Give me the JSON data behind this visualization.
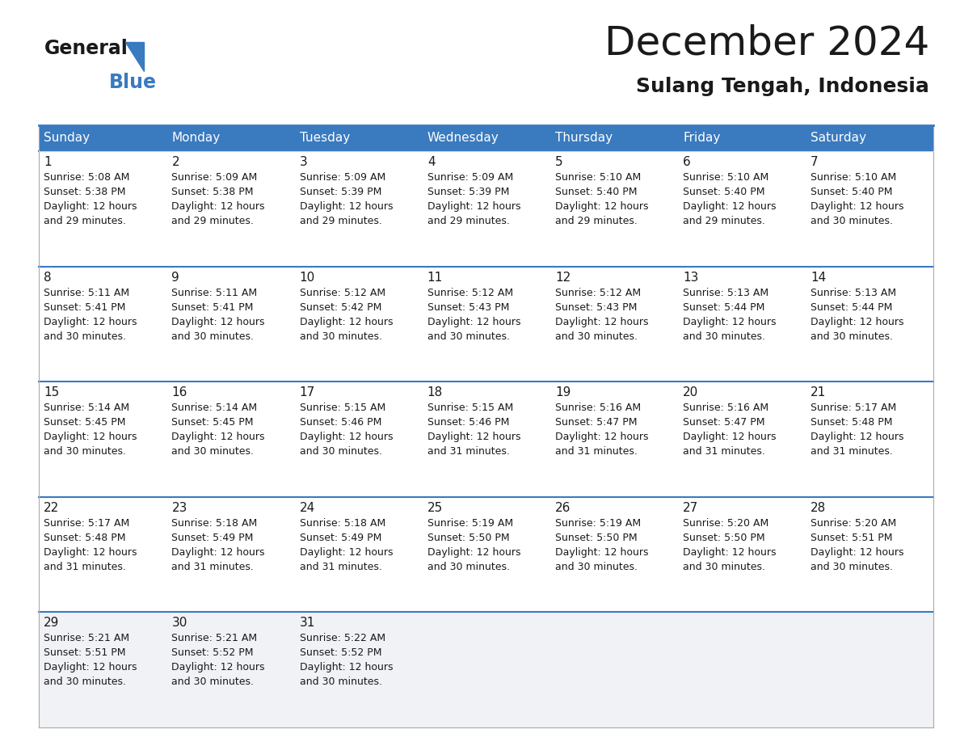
{
  "title": "December 2024",
  "subtitle": "Sulang Tengah, Indonesia",
  "header_color": "#3a7abf",
  "header_text_color": "#ffffff",
  "cell_bg": "#ffffff",
  "cell_bg_last": "#f0f2f5",
  "separator_color": "#3a7abf",
  "border_color": "#3a7abf",
  "days_of_week": [
    "Sunday",
    "Monday",
    "Tuesday",
    "Wednesday",
    "Thursday",
    "Friday",
    "Saturday"
  ],
  "calendar_data": [
    [
      {
        "day": 1,
        "sunrise": "5:08 AM",
        "sunset": "5:38 PM",
        "daylight": "12 hours and 29 minutes"
      },
      {
        "day": 2,
        "sunrise": "5:09 AM",
        "sunset": "5:38 PM",
        "daylight": "12 hours and 29 minutes"
      },
      {
        "day": 3,
        "sunrise": "5:09 AM",
        "sunset": "5:39 PM",
        "daylight": "12 hours and 29 minutes"
      },
      {
        "day": 4,
        "sunrise": "5:09 AM",
        "sunset": "5:39 PM",
        "daylight": "12 hours and 29 minutes"
      },
      {
        "day": 5,
        "sunrise": "5:10 AM",
        "sunset": "5:40 PM",
        "daylight": "12 hours and 29 minutes"
      },
      {
        "day": 6,
        "sunrise": "5:10 AM",
        "sunset": "5:40 PM",
        "daylight": "12 hours and 29 minutes"
      },
      {
        "day": 7,
        "sunrise": "5:10 AM",
        "sunset": "5:40 PM",
        "daylight": "12 hours and 30 minutes"
      }
    ],
    [
      {
        "day": 8,
        "sunrise": "5:11 AM",
        "sunset": "5:41 PM",
        "daylight": "12 hours and 30 minutes"
      },
      {
        "day": 9,
        "sunrise": "5:11 AM",
        "sunset": "5:41 PM",
        "daylight": "12 hours and 30 minutes"
      },
      {
        "day": 10,
        "sunrise": "5:12 AM",
        "sunset": "5:42 PM",
        "daylight": "12 hours and 30 minutes"
      },
      {
        "day": 11,
        "sunrise": "5:12 AM",
        "sunset": "5:43 PM",
        "daylight": "12 hours and 30 minutes"
      },
      {
        "day": 12,
        "sunrise": "5:12 AM",
        "sunset": "5:43 PM",
        "daylight": "12 hours and 30 minutes"
      },
      {
        "day": 13,
        "sunrise": "5:13 AM",
        "sunset": "5:44 PM",
        "daylight": "12 hours and 30 minutes"
      },
      {
        "day": 14,
        "sunrise": "5:13 AM",
        "sunset": "5:44 PM",
        "daylight": "12 hours and 30 minutes"
      }
    ],
    [
      {
        "day": 15,
        "sunrise": "5:14 AM",
        "sunset": "5:45 PM",
        "daylight": "12 hours and 30 minutes"
      },
      {
        "day": 16,
        "sunrise": "5:14 AM",
        "sunset": "5:45 PM",
        "daylight": "12 hours and 30 minutes"
      },
      {
        "day": 17,
        "sunrise": "5:15 AM",
        "sunset": "5:46 PM",
        "daylight": "12 hours and 30 minutes"
      },
      {
        "day": 18,
        "sunrise": "5:15 AM",
        "sunset": "5:46 PM",
        "daylight": "12 hours and 31 minutes"
      },
      {
        "day": 19,
        "sunrise": "5:16 AM",
        "sunset": "5:47 PM",
        "daylight": "12 hours and 31 minutes"
      },
      {
        "day": 20,
        "sunrise": "5:16 AM",
        "sunset": "5:47 PM",
        "daylight": "12 hours and 31 minutes"
      },
      {
        "day": 21,
        "sunrise": "5:17 AM",
        "sunset": "5:48 PM",
        "daylight": "12 hours and 31 minutes"
      }
    ],
    [
      {
        "day": 22,
        "sunrise": "5:17 AM",
        "sunset": "5:48 PM",
        "daylight": "12 hours and 31 minutes"
      },
      {
        "day": 23,
        "sunrise": "5:18 AM",
        "sunset": "5:49 PM",
        "daylight": "12 hours and 31 minutes"
      },
      {
        "day": 24,
        "sunrise": "5:18 AM",
        "sunset": "5:49 PM",
        "daylight": "12 hours and 31 minutes"
      },
      {
        "day": 25,
        "sunrise": "5:19 AM",
        "sunset": "5:50 PM",
        "daylight": "12 hours and 30 minutes"
      },
      {
        "day": 26,
        "sunrise": "5:19 AM",
        "sunset": "5:50 PM",
        "daylight": "12 hours and 30 minutes"
      },
      {
        "day": 27,
        "sunrise": "5:20 AM",
        "sunset": "5:50 PM",
        "daylight": "12 hours and 30 minutes"
      },
      {
        "day": 28,
        "sunrise": "5:20 AM",
        "sunset": "5:51 PM",
        "daylight": "12 hours and 30 minutes"
      }
    ],
    [
      {
        "day": 29,
        "sunrise": "5:21 AM",
        "sunset": "5:51 PM",
        "daylight": "12 hours and 30 minutes"
      },
      {
        "day": 30,
        "sunrise": "5:21 AM",
        "sunset": "5:52 PM",
        "daylight": "12 hours and 30 minutes"
      },
      {
        "day": 31,
        "sunrise": "5:22 AM",
        "sunset": "5:52 PM",
        "daylight": "12 hours and 30 minutes"
      },
      null,
      null,
      null,
      null
    ]
  ],
  "logo_general_color": "#1a1a1a",
  "logo_blue_color": "#3a7abf",
  "logo_triangle_color": "#3a7abf",
  "title_fontsize": 36,
  "subtitle_fontsize": 18,
  "header_fontsize": 11,
  "day_num_fontsize": 11,
  "cell_text_fontsize": 9
}
